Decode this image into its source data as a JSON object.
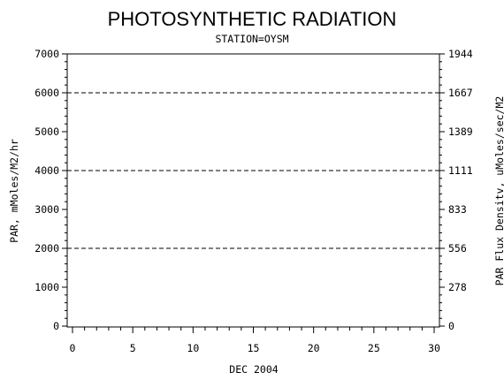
{
  "chart_data": {
    "type": "line",
    "title": "PHOTOSYNTHETIC RADIATION",
    "subtitle": "STATION=OYSM",
    "xlabel": "DEC 2004",
    "ylabel": "PAR, mMoles/M2/hr",
    "ylabel_right": "PAR Flux Densitv, uMoles/sec/M2",
    "xlim": [
      0,
      30
    ],
    "ylim": [
      0,
      7000
    ],
    "ylim_right": [
      0,
      1944
    ],
    "x_ticks": [
      "0",
      "5",
      "10",
      "15",
      "20",
      "25",
      "30"
    ],
    "y_ticks": [
      "0",
      "1000",
      "2000",
      "3000",
      "4000",
      "5000",
      "6000",
      "7000"
    ],
    "y_ticks_right": [
      "0",
      "278",
      "556",
      "833",
      "1111",
      "1389",
      "1667",
      "1944"
    ],
    "grid": "dashed horizontal at 2000, 4000, 6000",
    "gridlines_y": [
      2000,
      4000,
      6000
    ],
    "series": []
  }
}
